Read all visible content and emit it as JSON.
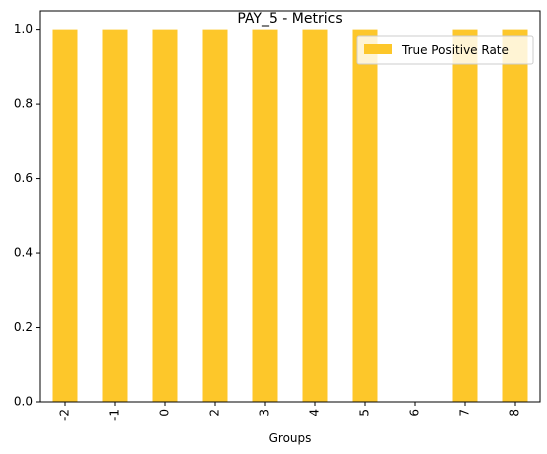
{
  "chart_data": {
    "type": "bar",
    "title": "PAY_5 - Metrics",
    "xlabel": "Groups",
    "ylabel": "",
    "categories": [
      "-2",
      "-1",
      "0",
      "2",
      "3",
      "4",
      "5",
      "6",
      "7",
      "8"
    ],
    "series": [
      {
        "name": "True Positive Rate",
        "values": [
          1.0,
          1.0,
          1.0,
          1.0,
          1.0,
          1.0,
          1.0,
          0.0,
          1.0,
          1.0
        ]
      }
    ],
    "ylim": [
      0,
      1.05
    ],
    "yticks": [
      "0.0",
      "0.2",
      "0.4",
      "0.6",
      "0.8",
      "1.0"
    ],
    "ytick_values": [
      0.0,
      0.2,
      0.4,
      0.6,
      0.8,
      1.0
    ],
    "legend_position": "top-right",
    "grid": false,
    "bar_color": "#fdc72a"
  }
}
